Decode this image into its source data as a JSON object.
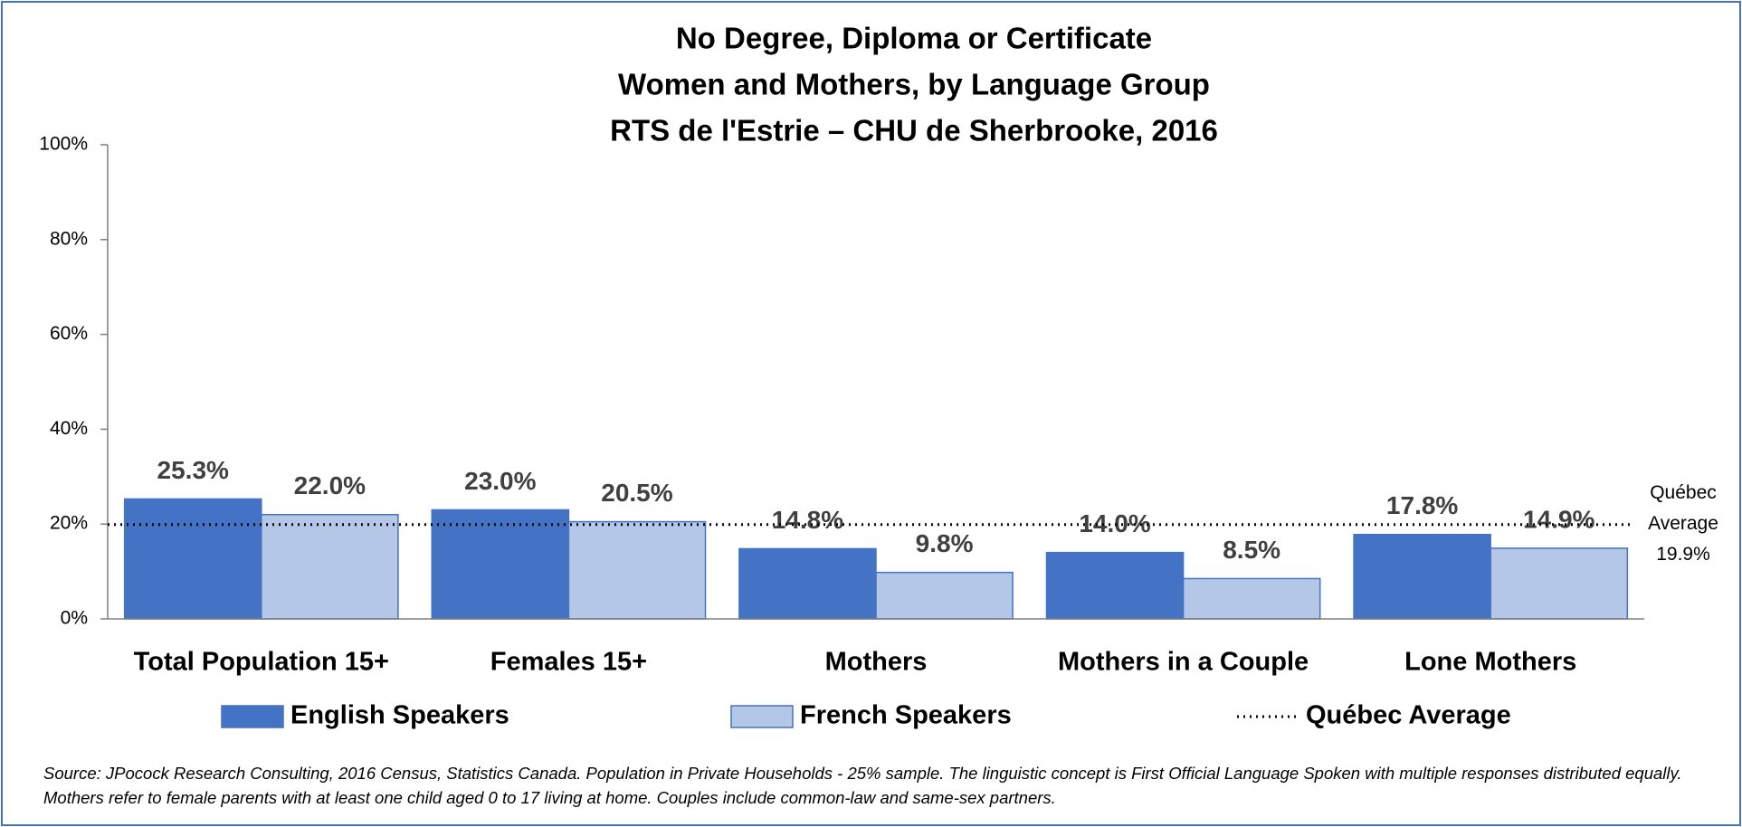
{
  "chart_data": {
    "type": "bar",
    "title": [
      "No Degree, Diploma or Certificate",
      "Women and Mothers, by Language Group",
      "RTS de l'Estrie – CHU de Sherbrooke, 2016"
    ],
    "categories": [
      "Total Population 15+",
      "Females 15+",
      "Mothers",
      "Mothers in a Couple",
      "Lone Mothers"
    ],
    "series": [
      {
        "name": "English Speakers",
        "color": "#4472c4",
        "values": [
          25.3,
          23.0,
          14.8,
          14.0,
          17.8
        ],
        "value_labels": [
          "25.3%",
          "23.0%",
          "14.8%",
          "14.0%",
          "17.8%"
        ]
      },
      {
        "name": "French Speakers",
        "color": "#b4c7e7",
        "values": [
          22.0,
          20.5,
          9.8,
          8.5,
          14.9
        ],
        "value_labels": [
          "22.0%",
          "20.5%",
          "9.8%",
          "8.5%",
          "14.9%"
        ]
      }
    ],
    "reference_line": {
      "name": "Québec Average",
      "value": 19.9,
      "value_label": "19.9%"
    },
    "ylim": [
      0,
      100
    ],
    "yticks": [
      {
        "value": 0,
        "label": "0%"
      },
      {
        "value": 20,
        "label": "20%"
      },
      {
        "value": 40,
        "label": "40%"
      },
      {
        "value": 60,
        "label": "60%"
      },
      {
        "value": 80,
        "label": "80%"
      },
      {
        "value": 100,
        "label": "100%"
      }
    ],
    "legend": "bottom",
    "source": "Source: JPocock Research Consulting, 2016 Census, Statistics Canada. Population in Private Households - 25% sample. The linguistic concept is First Official Language Spoken with multiple responses distributed equally. Mothers refer to female parents with at least one child aged 0 to 17 living at home. Couples include common-law and same-sex partners."
  }
}
